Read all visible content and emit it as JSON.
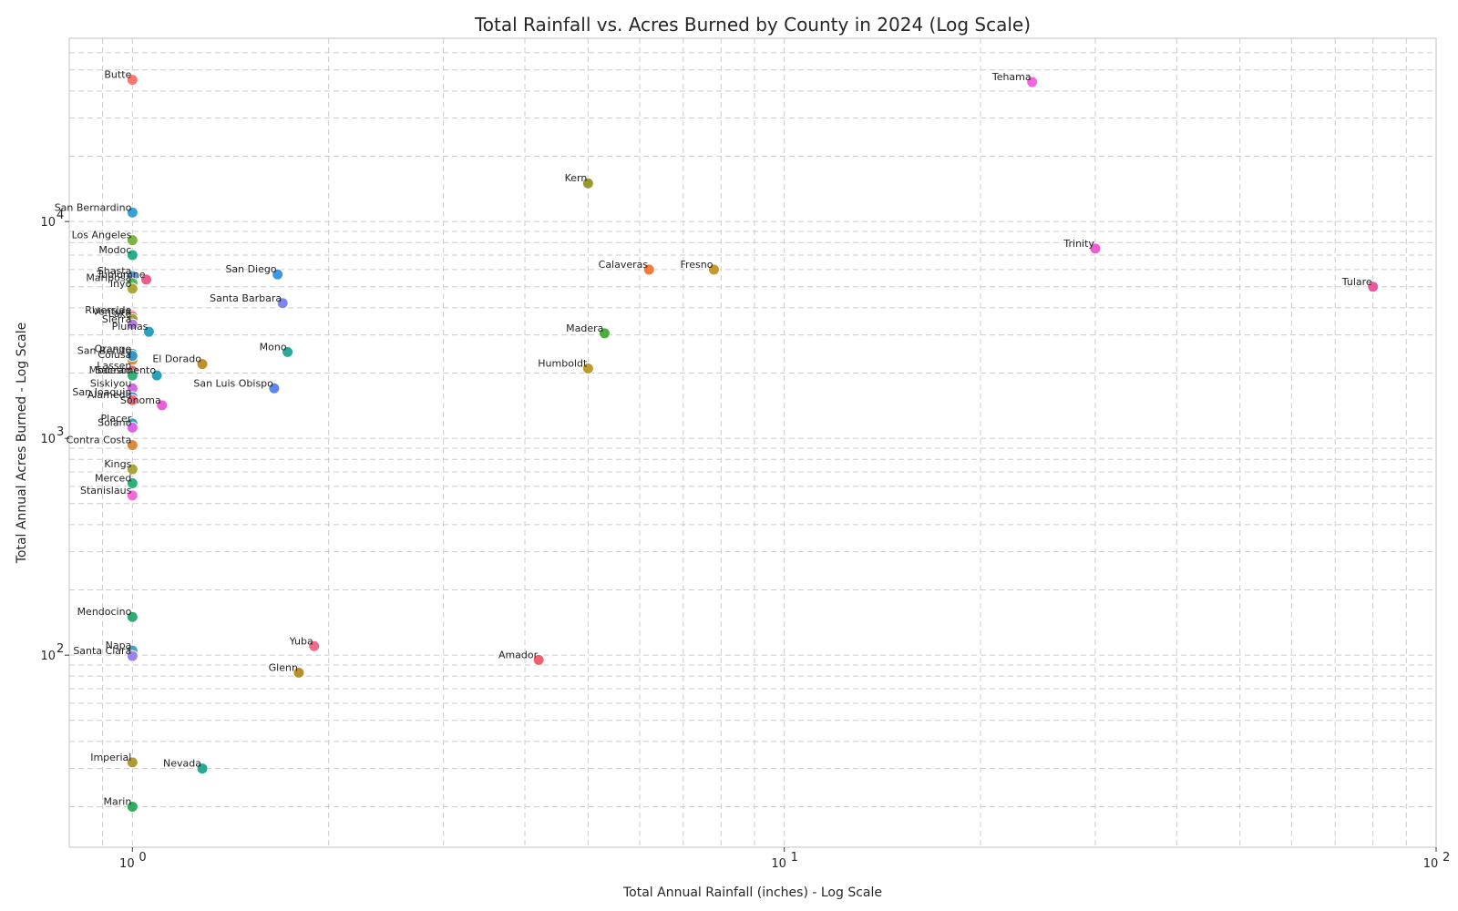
{
  "chart_data": {
    "type": "scatter",
    "title": "Total Rainfall vs. Acres Burned by County in 2024 (Log Scale)",
    "xlabel": "Total Annual Rainfall (inches) - Log Scale",
    "ylabel": "Total Annual Acres Burned - Log Scale",
    "x_scale": "log",
    "y_scale": "log",
    "xlim": [
      0.8,
      100
    ],
    "ylim": [
      13,
      70000
    ],
    "grid": true,
    "x_ticks": [
      {
        "value": 1,
        "label": "10",
        "exp": "0"
      },
      {
        "value": 10,
        "label": "10",
        "exp": "1"
      },
      {
        "value": 100,
        "label": "10",
        "exp": "2"
      }
    ],
    "y_ticks": [
      {
        "value": 100,
        "label": "10",
        "exp": "2"
      },
      {
        "value": 1000,
        "label": "10",
        "exp": "3"
      },
      {
        "value": 10000,
        "label": "10",
        "exp": "4"
      }
    ],
    "points": [
      {
        "name": "Butte",
        "x": 1.0,
        "y": 45000,
        "color": "#f8766d"
      },
      {
        "name": "Tehama",
        "x": 24.0,
        "y": 44000,
        "color": "#f564e3"
      },
      {
        "name": "Kern",
        "x": 5.0,
        "y": 15000,
        "color": "#999933"
      },
      {
        "name": "San Bernardino",
        "x": 1.0,
        "y": 11000,
        "color": "#3a9fd8"
      },
      {
        "name": "Los Angeles",
        "x": 1.0,
        "y": 8200,
        "color": "#7cb442"
      },
      {
        "name": "Fresno",
        "x": 7.8,
        "y": 6000,
        "color": "#c49a2e"
      },
      {
        "name": "Tulare",
        "x": 80.0,
        "y": 5000,
        "color": "#f0569f"
      },
      {
        "name": "Santa Barbara",
        "x": 1.7,
        "y": 4200,
        "color": "#7b84f0"
      },
      {
        "name": "Riverside",
        "x": 1.0,
        "y": 3700,
        "color": "#e76ba3"
      },
      {
        "name": "Ventura",
        "x": 1.0,
        "y": 3650,
        "color": "#f06a8a"
      },
      {
        "name": "Orange",
        "x": 1.0,
        "y": 2450,
        "color": "#31a3c6"
      },
      {
        "name": "Colusa",
        "x": 1.0,
        "y": 2300,
        "color": "#d98c3a"
      },
      {
        "name": "Humboldt",
        "x": 5.0,
        "y": 2100,
        "color": "#bb9a2e"
      },
      {
        "name": "Siskiyou",
        "x": 1.0,
        "y": 1700,
        "color": "#d66ae0"
      },
      {
        "name": "San Luis Obispo",
        "x": 1.65,
        "y": 1700,
        "color": "#5b86ee"
      },
      {
        "name": "San Joaquin",
        "x": 1.0,
        "y": 1550,
        "color": "#4a8ff0"
      },
      {
        "name": "Trinity",
        "x": 30.0,
        "y": 7500,
        "color": "#ef5bd0"
      },
      {
        "name": "Modoc",
        "x": 1.0,
        "y": 7000,
        "color": "#2bab8a"
      },
      {
        "name": "Calaveras",
        "x": 6.2,
        "y": 6000,
        "color": "#f27c3a"
      },
      {
        "name": "San Diego",
        "x": 1.67,
        "y": 5700,
        "color": "#3a97e6"
      },
      {
        "name": "Shasta",
        "x": 1.0,
        "y": 5600,
        "color": "#5d9ee0"
      },
      {
        "name": "Tuolumne",
        "x": 1.05,
        "y": 5400,
        "color": "#f05a8a"
      },
      {
        "name": "Mariposa",
        "x": 1.0,
        "y": 5200,
        "color": "#59b35f"
      },
      {
        "name": "Inyo",
        "x": 1.0,
        "y": 4900,
        "color": "#b0a73a"
      },
      {
        "name": "Madera",
        "x": 5.3,
        "y": 3050,
        "color": "#4cae3d"
      },
      {
        "name": "Lake",
        "x": 1.0,
        "y": 3550,
        "color": "#99a33a"
      },
      {
        "name": "Sierra",
        "x": 1.0,
        "y": 3350,
        "color": "#b67be8"
      },
      {
        "name": "Plumas",
        "x": 1.06,
        "y": 3100,
        "color": "#2fa0c0"
      },
      {
        "name": "Mono",
        "x": 1.73,
        "y": 2500,
        "color": "#2aa898"
      },
      {
        "name": "San Benito",
        "x": 1.0,
        "y": 2400,
        "color": "#3596c8"
      },
      {
        "name": "El Dorado",
        "x": 1.28,
        "y": 2200,
        "color": "#c08f2e"
      },
      {
        "name": "Lassen",
        "x": 1.0,
        "y": 2050,
        "color": "#d96a72"
      },
      {
        "name": "Sacramento",
        "x": 1.09,
        "y": 1950,
        "color": "#2b9fb8"
      },
      {
        "name": "Modesto",
        "x": 1.0,
        "y": 1950,
        "color": "#3aae78"
      },
      {
        "name": "Alameda",
        "x": 1.0,
        "y": 1500,
        "color": "#f06b7a"
      },
      {
        "name": "Sonoma",
        "x": 1.11,
        "y": 1420,
        "color": "#ec5fd6"
      },
      {
        "name": "Placer",
        "x": 1.0,
        "y": 1170,
        "color": "#2fa7b8"
      },
      {
        "name": "Solano",
        "x": 1.0,
        "y": 1120,
        "color": "#dd62ee"
      },
      {
        "name": "Contra Costa",
        "x": 1.0,
        "y": 930,
        "color": "#d98c3a"
      },
      {
        "name": "Kings",
        "x": 1.0,
        "y": 720,
        "color": "#a9a53a"
      },
      {
        "name": "Merced",
        "x": 1.0,
        "y": 620,
        "color": "#2db07a"
      },
      {
        "name": "Stanislaus",
        "x": 1.0,
        "y": 545,
        "color": "#f26bd8"
      },
      {
        "name": "Mendocino",
        "x": 1.0,
        "y": 150,
        "color": "#2eaa72"
      },
      {
        "name": "Yuba",
        "x": 1.9,
        "y": 110,
        "color": "#f06a8e"
      },
      {
        "name": "Napa",
        "x": 1.0,
        "y": 105,
        "color": "#4aa0c8"
      },
      {
        "name": "Santa Clara",
        "x": 1.0,
        "y": 99,
        "color": "#9b82ee"
      },
      {
        "name": "Amador",
        "x": 4.2,
        "y": 95,
        "color": "#f2606f"
      },
      {
        "name": "Glenn",
        "x": 1.8,
        "y": 83,
        "color": "#b99030"
      },
      {
        "name": "Imperial",
        "x": 1.0,
        "y": 32,
        "color": "#b09a35"
      },
      {
        "name": "Nevada",
        "x": 1.28,
        "y": 30,
        "color": "#28a898"
      },
      {
        "name": "Marin",
        "x": 1.0,
        "y": 20,
        "color": "#2eae5e"
      }
    ]
  }
}
